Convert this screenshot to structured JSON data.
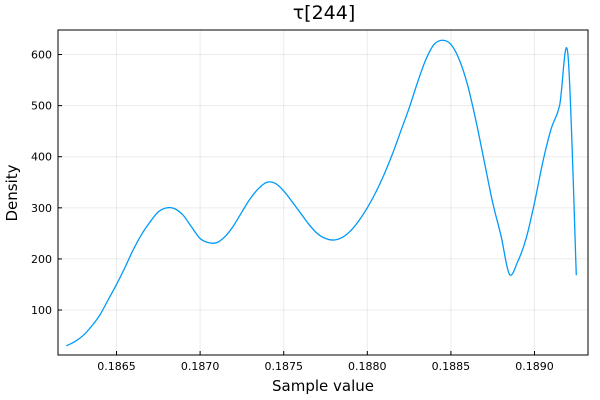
{
  "chart_data": {
    "type": "line",
    "title": "τ[244]",
    "xlabel": "Sample value",
    "ylabel": "Density",
    "xlim": [
      0.18615,
      0.18932
    ],
    "ylim": [
      12,
      648
    ],
    "xticks": [
      0.1865,
      0.187,
      0.1875,
      0.188,
      0.1885,
      0.189
    ],
    "xtick_labels": [
      "0.1865",
      "0.1870",
      "0.1875",
      "0.1880",
      "0.1885",
      "0.1890"
    ],
    "yticks": [
      100,
      200,
      300,
      400,
      500,
      600
    ],
    "ytick_labels": [
      "100",
      "200",
      "300",
      "400",
      "500",
      "600"
    ],
    "grid": true,
    "legend": "none",
    "series": [
      {
        "color": "#009af9",
        "x": [
          0.1862,
          0.18625,
          0.1863,
          0.18635,
          0.1864,
          0.18645,
          0.1865,
          0.18655,
          0.1866,
          0.18665,
          0.1867,
          0.18675,
          0.1868,
          0.18685,
          0.1869,
          0.18695,
          0.187,
          0.18705,
          0.1871,
          0.18715,
          0.1872,
          0.18725,
          0.1873,
          0.18735,
          0.1874,
          0.18745,
          0.1875,
          0.18755,
          0.1876,
          0.18765,
          0.1877,
          0.18775,
          0.1878,
          0.18785,
          0.1879,
          0.18795,
          0.188,
          0.18805,
          0.1881,
          0.18815,
          0.1882,
          0.18825,
          0.1883,
          0.18835,
          0.1884,
          0.18845,
          0.1885,
          0.18855,
          0.1886,
          0.18865,
          0.1887,
          0.18875,
          0.1888,
          0.18885,
          0.1889,
          0.18895,
          0.189,
          0.18905,
          0.1891,
          0.18915,
          0.1892,
          0.18925
        ],
        "y": [
          30,
          38,
          50,
          68,
          90,
          120,
          150,
          183,
          218,
          248,
          272,
          292,
          300,
          298,
          285,
          262,
          240,
          232,
          232,
          244,
          265,
          292,
          318,
          338,
          350,
          348,
          333,
          312,
          290,
          268,
          250,
          240,
          237,
          242,
          255,
          275,
          300,
          330,
          365,
          405,
          450,
          495,
          545,
          590,
          620,
          628,
          620,
          590,
          540,
          470,
          390,
          310,
          245,
          170,
          195,
          240,
          310,
          390,
          455,
          500,
          600,
          168
        ]
      }
    ]
  }
}
